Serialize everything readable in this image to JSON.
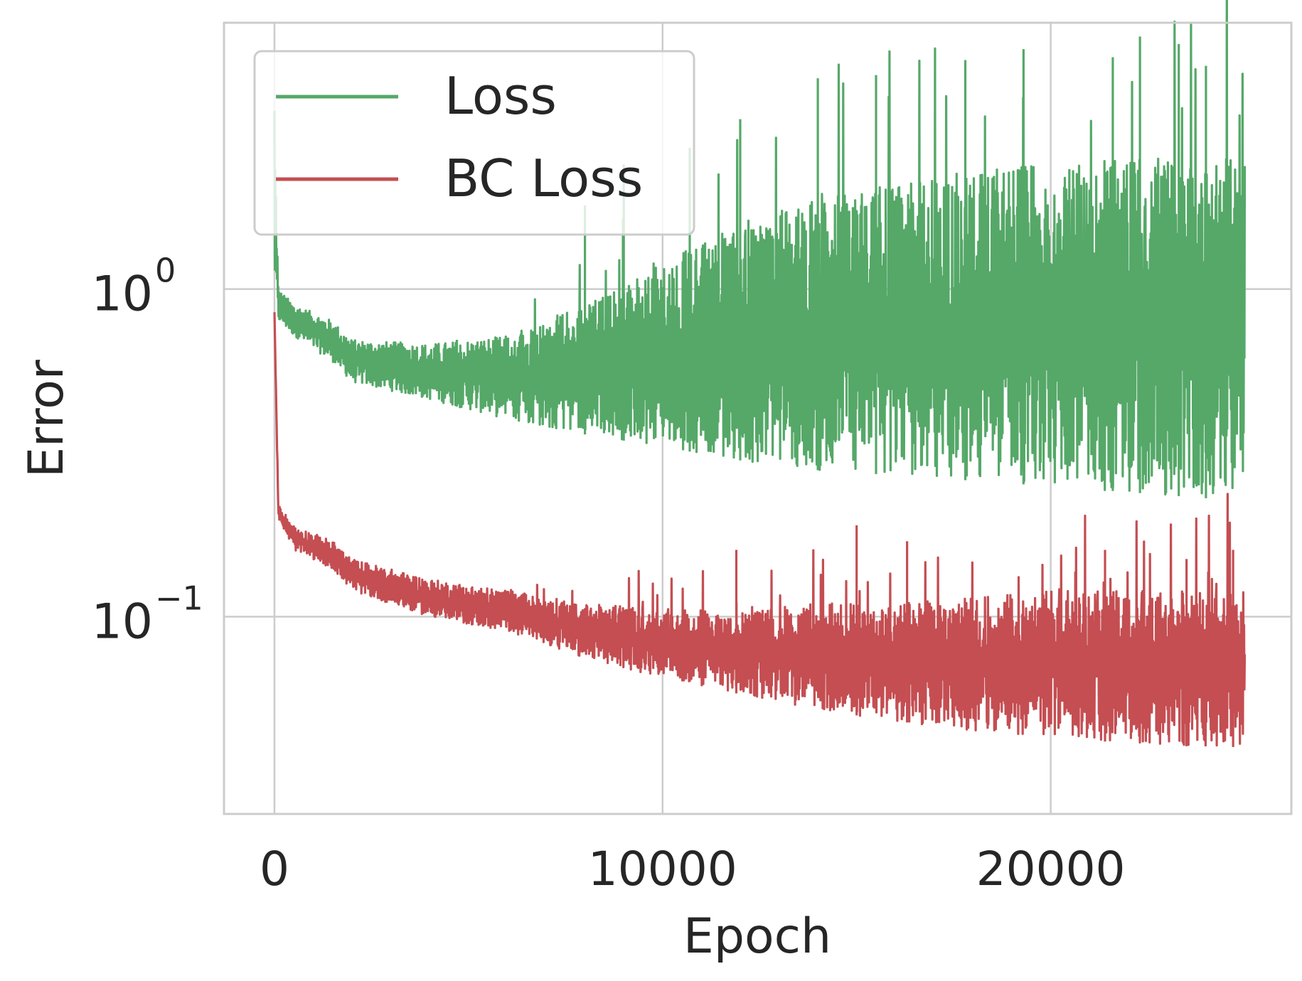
{
  "chart_data": {
    "type": "line",
    "title": "",
    "xlabel": "Epoch",
    "ylabel": "Error",
    "xlim": [
      -1300,
      26200
    ],
    "ylim": [
      0.025,
      6.5
    ],
    "yscale": "log",
    "grid": true,
    "legend_position": "top-left",
    "x_ticks": [
      {
        "value": 0,
        "label": "0"
      },
      {
        "value": 10000,
        "label": "10000"
      },
      {
        "value": 20000,
        "label": "20000"
      }
    ],
    "y_ticks": [
      {
        "value": 1,
        "base": "10",
        "exponent": "0"
      },
      {
        "value": 0.1,
        "base": "10",
        "exponent": "−1"
      }
    ],
    "colors": {
      "loss": "#55a868",
      "bc_loss": "#c44e52",
      "grid": "#cccccc",
      "axes": "#cccccc",
      "text": "#262626"
    },
    "series": [
      {
        "name": "Loss",
        "color": "#55a868",
        "note_shape": "noisy decaying curve with spikes",
        "envelope_x": [
          0,
          100,
          500,
          1500,
          2000,
          4000,
          6000,
          8000,
          10000,
          12000,
          14000,
          16000,
          18000,
          20000,
          22000,
          24000,
          25000
        ],
        "envelope_low": [
          1.0,
          0.8,
          0.72,
          0.6,
          0.52,
          0.46,
          0.4,
          0.36,
          0.33,
          0.3,
          0.28,
          0.27,
          0.26,
          0.25,
          0.24,
          0.23,
          0.23
        ],
        "envelope_high": [
          3.5,
          1.0,
          0.9,
          0.8,
          0.7,
          0.68,
          0.72,
          0.9,
          1.2,
          1.6,
          1.9,
          2.1,
          2.3,
          2.4,
          2.5,
          2.5,
          2.5
        ],
        "spike_peaks": [
          {
            "x": 4700,
            "y": 0.7
          },
          {
            "x": 8000,
            "y": 1.8
          },
          {
            "x": 9000,
            "y": 2.4
          },
          {
            "x": 10700,
            "y": 2.7
          },
          {
            "x": 12000,
            "y": 3.3
          },
          {
            "x": 14000,
            "y": 4.4
          },
          {
            "x": 15500,
            "y": 4.5
          },
          {
            "x": 17800,
            "y": 5.0
          },
          {
            "x": 19300,
            "y": 5.4
          },
          {
            "x": 21600,
            "y": 5.1
          },
          {
            "x": 22300,
            "y": 5.9
          },
          {
            "x": 23300,
            "y": 5.6
          },
          {
            "x": 24000,
            "y": 4.8
          }
        ]
      },
      {
        "name": "BC Loss",
        "color": "#c44e52",
        "note_shape": "noisy decaying curve with spikes",
        "envelope_x": [
          0,
          100,
          500,
          1500,
          2000,
          4000,
          6000,
          8000,
          10000,
          12000,
          14000,
          16000,
          18000,
          20000,
          22000,
          24000,
          25000
        ],
        "envelope_low": [
          0.85,
          0.2,
          0.16,
          0.14,
          0.12,
          0.1,
          0.09,
          0.075,
          0.065,
          0.058,
          0.052,
          0.048,
          0.045,
          0.043,
          0.041,
          0.04,
          0.04
        ],
        "envelope_high": [
          0.85,
          0.22,
          0.19,
          0.17,
          0.15,
          0.13,
          0.12,
          0.11,
          0.105,
          0.105,
          0.11,
          0.11,
          0.115,
          0.12,
          0.12,
          0.12,
          0.12
        ],
        "spike_peaks": [
          {
            "x": 11900,
            "y": 0.16
          },
          {
            "x": 15000,
            "y": 0.19
          },
          {
            "x": 16300,
            "y": 0.17
          },
          {
            "x": 21400,
            "y": 0.16
          },
          {
            "x": 23500,
            "y": 0.15
          },
          {
            "x": 24700,
            "y": 0.16
          }
        ]
      }
    ]
  }
}
